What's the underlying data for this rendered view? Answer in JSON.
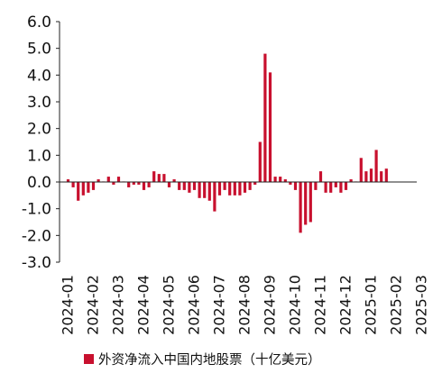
{
  "chart_data": {
    "type": "bar",
    "ylim": [
      -3.0,
      6.0
    ],
    "ytick_labels": [
      "6.0",
      "5.0",
      "4.0",
      "3.0",
      "2.0",
      "1.0",
      "0.0",
      "-1.0",
      "-2.0",
      "-3.0"
    ],
    "ytick_values": [
      6,
      5,
      4,
      3,
      2,
      1,
      0,
      -1,
      -2,
      -3
    ],
    "xtick_labels": [
      "2024-01",
      "2024-02",
      "2024-03",
      "2024-04",
      "2024-05",
      "2024-06",
      "2024-07",
      "2024-08",
      "2024-09",
      "2024-10",
      "2024-11",
      "2024-12",
      "2025-01",
      "2025-02",
      "2025-03"
    ],
    "bars_per_tick": 5,
    "grid": false,
    "legend_position": "bottom",
    "bar_color": "#c8102e",
    "series": [
      {
        "name": "外资净流入中国内地股票（十亿美元）",
        "values": [
          0.1,
          -0.2,
          -0.7,
          -0.5,
          -0.4,
          -0.3,
          0.1,
          0.0,
          0.2,
          -0.1,
          0.2,
          0.0,
          -0.2,
          -0.1,
          -0.1,
          -0.3,
          -0.2,
          0.4,
          0.3,
          0.3,
          -0.2,
          0.1,
          -0.3,
          -0.3,
          -0.4,
          -0.3,
          -0.6,
          -0.6,
          -0.7,
          -1.1,
          -0.5,
          -0.3,
          -0.5,
          -0.5,
          -0.5,
          -0.4,
          -0.3,
          -0.1,
          1.5,
          4.8,
          4.1,
          0.2,
          0.2,
          0.1,
          -0.1,
          -0.3,
          -1.9,
          -1.6,
          -1.5,
          -0.3,
          0.4,
          -0.4,
          -0.4,
          -0.2,
          -0.4,
          -0.3,
          0.1,
          0.0,
          0.9,
          0.4,
          0.5,
          1.2,
          0.4,
          0.5
        ]
      }
    ]
  }
}
